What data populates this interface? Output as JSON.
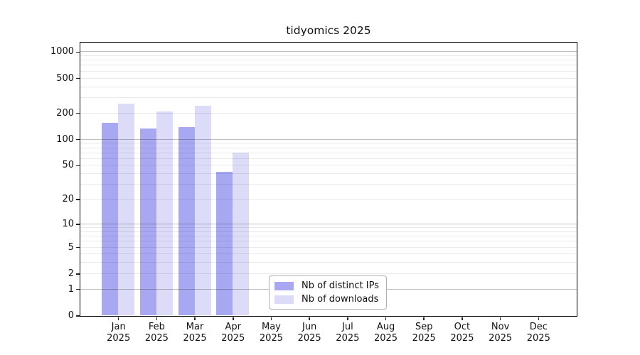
{
  "chart_data": {
    "type": "bar",
    "title": "tidyomics 2025",
    "categories": [
      "Jan",
      "Feb",
      "Mar",
      "Apr",
      "May",
      "Jun",
      "Jul",
      "Aug",
      "Sep",
      "Oct",
      "Nov",
      "Dec"
    ],
    "x_tick_year": "2025",
    "series": [
      {
        "name": "Nb of distinct IPs",
        "color": "#a8a8f2",
        "values": [
          155,
          134,
          139,
          42,
          0,
          0,
          0,
          0,
          0,
          0,
          0,
          0
        ]
      },
      {
        "name": "Nb of downloads",
        "color": "#dcdcf9",
        "values": [
          255,
          207,
          240,
          70,
          0,
          0,
          0,
          0,
          0,
          0,
          0,
          0
        ]
      }
    ],
    "yscale": "log1p",
    "yticks": [
      0,
      1,
      2,
      5,
      10,
      20,
      50,
      100,
      200,
      500,
      1000
    ],
    "ylim": [
      0,
      1285
    ],
    "grid": {
      "major_at": [
        1,
        10,
        100,
        1000
      ],
      "minor_at_note": "2-9, 20-90, 200-900"
    },
    "legend_position": "bottom-center"
  }
}
